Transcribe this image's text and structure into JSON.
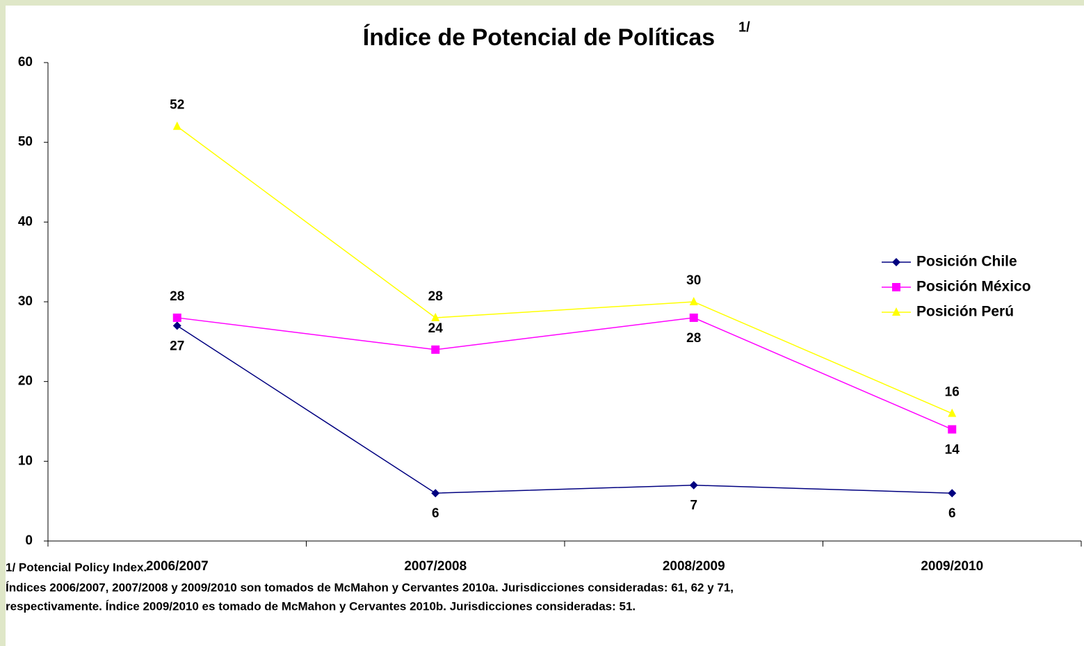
{
  "chart_data": {
    "type": "line",
    "title": "Índice de Potencial de Políticas",
    "title_superscript": "1/",
    "categories": [
      "2006/2007",
      "2007/2008",
      "2008/2009",
      "2009/2010"
    ],
    "series": [
      {
        "name": "Posición Chile",
        "color": "#000080",
        "marker": "diamond",
        "values": [
          27,
          6,
          7,
          6
        ]
      },
      {
        "name": "Posición México",
        "color": "#ff00ff",
        "marker": "square",
        "values": [
          28,
          24,
          28,
          14
        ]
      },
      {
        "name": "Posición Perú",
        "color": "#ffff00",
        "marker": "triangle",
        "values": [
          52,
          28,
          30,
          16
        ]
      }
    ],
    "ylim": [
      0,
      60
    ],
    "yticks": [
      0,
      10,
      20,
      30,
      40,
      50,
      60
    ],
    "grid": false,
    "legend": "right",
    "notes": [
      "1/ Potencial Policy Index.",
      "Índices 2006/2007, 2007/2008 y 2009/2010 son tomados de McMahon y Cervantes 2010a. Jurisdicciones consideradas: 61, 62 y 71,",
      "respectivamente. Índice 2009/2010 es tomado de McMahon y Cervantes 2010b. Jurisdicciones consideradas: 51."
    ]
  }
}
